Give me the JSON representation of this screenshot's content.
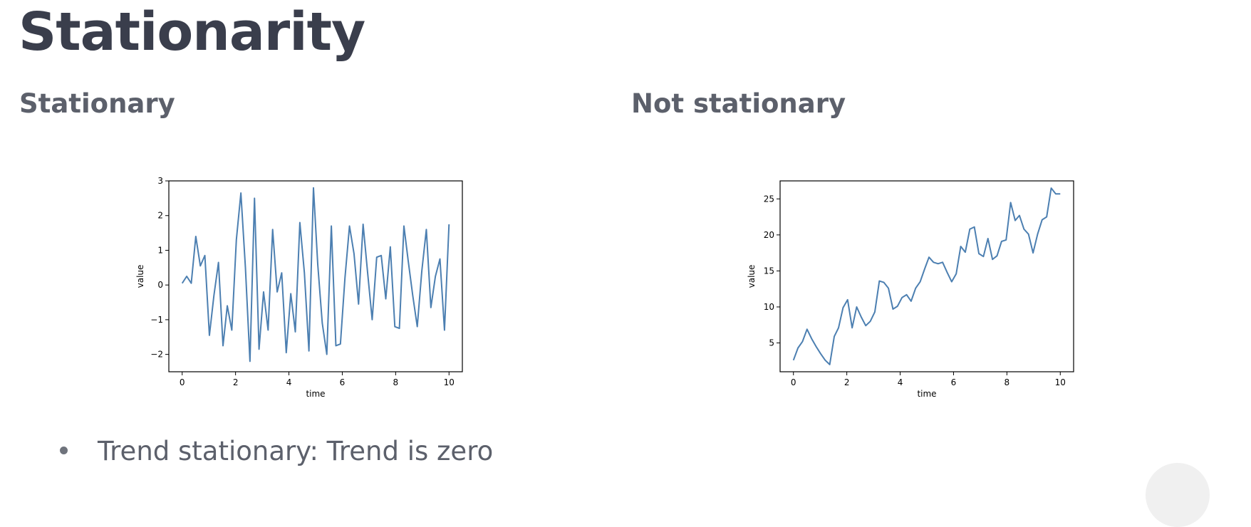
{
  "title": "Stationarity",
  "panels": [
    {
      "subtitle": "Stationary"
    },
    {
      "subtitle": "Not stationary"
    }
  ],
  "bullet": {
    "text": "Trend stationary: Trend is zero"
  },
  "colors": {
    "line": "#4c7fb1",
    "title": "#3a3e4c",
    "text": "#5c606b"
  },
  "chart_data": [
    {
      "type": "line",
      "xlabel": "time",
      "ylabel": "value",
      "xlim": [
        -0.5,
        10.5
      ],
      "ylim": [
        -2.5,
        3.0
      ],
      "xticks": [
        0,
        2,
        4,
        6,
        8,
        10
      ],
      "xtick_labels": [
        "0",
        "2",
        "4",
        "6",
        "8",
        "10"
      ],
      "yticks": [
        -2,
        -1,
        0,
        1,
        2,
        3
      ],
      "ytick_labels": [
        "−2",
        "−1",
        "0",
        "1",
        "2",
        "3"
      ],
      "grid": false,
      "series": [
        {
          "x": [
            0.0,
            0.17,
            0.34,
            0.51,
            0.68,
            0.85,
            1.02,
            1.19,
            1.36,
            1.53,
            1.69,
            1.86,
            2.03,
            2.2,
            2.37,
            2.54,
            2.71,
            2.88,
            3.05,
            3.22,
            3.39,
            3.56,
            3.73,
            3.9,
            4.07,
            4.24,
            4.41,
            4.58,
            4.75,
            4.92,
            5.08,
            5.25,
            5.42,
            5.59,
            5.76,
            5.93,
            6.1,
            6.27,
            6.44,
            6.61,
            6.78,
            6.95,
            7.12,
            7.29,
            7.46,
            7.63,
            7.8,
            7.97,
            8.14,
            8.31,
            8.47,
            8.64,
            8.81,
            8.98,
            9.15,
            9.32,
            9.49,
            9.66,
            9.83,
            10.0
          ],
          "y": [
            0.05,
            0.25,
            0.05,
            1.4,
            0.55,
            0.85,
            -1.45,
            -0.3,
            0.65,
            -1.75,
            -0.6,
            -1.3,
            1.3,
            2.65,
            0.5,
            -2.2,
            2.5,
            -1.85,
            -0.2,
            -1.3,
            1.6,
            -0.2,
            0.35,
            -1.95,
            -0.25,
            -1.35,
            1.8,
            0.35,
            -1.9,
            2.8,
            0.6,
            -1.1,
            -2.0,
            1.7,
            -1.75,
            -1.7,
            0.2,
            1.7,
            0.9,
            -0.55,
            1.75,
            0.35,
            -1.0,
            0.8,
            0.85,
            -0.4,
            1.1,
            -1.2,
            -1.25,
            1.7,
            0.7,
            -0.3,
            -1.2,
            0.4,
            1.6,
            -0.65,
            0.25,
            0.75,
            -1.3,
            1.75
          ]
        }
      ]
    },
    {
      "type": "line",
      "xlabel": "time",
      "ylabel": "value",
      "xlim": [
        -0.5,
        10.5
      ],
      "ylim": [
        1.0,
        27.5
      ],
      "xticks": [
        0,
        2,
        4,
        6,
        8,
        10
      ],
      "xtick_labels": [
        "0",
        "2",
        "4",
        "6",
        "8",
        "10"
      ],
      "yticks": [
        5,
        10,
        15,
        20,
        25
      ],
      "ytick_labels": [
        "5",
        "10",
        "15",
        "20",
        "25"
      ],
      "grid": false,
      "series": [
        {
          "x": [
            0.0,
            0.17,
            0.34,
            0.51,
            0.68,
            0.85,
            1.02,
            1.19,
            1.36,
            1.53,
            1.69,
            1.86,
            2.03,
            2.2,
            2.37,
            2.54,
            2.71,
            2.88,
            3.05,
            3.22,
            3.39,
            3.56,
            3.73,
            3.9,
            4.07,
            4.24,
            4.41,
            4.58,
            4.75,
            4.92,
            5.08,
            5.25,
            5.42,
            5.59,
            5.76,
            5.93,
            6.1,
            6.27,
            6.44,
            6.61,
            6.78,
            6.95,
            7.12,
            7.29,
            7.46,
            7.63,
            7.8,
            7.97,
            8.14,
            8.31,
            8.47,
            8.64,
            8.81,
            8.98,
            9.15,
            9.32,
            9.49,
            9.66,
            9.83,
            10.0
          ],
          "y": [
            2.6,
            4.3,
            5.2,
            6.9,
            5.6,
            4.5,
            3.5,
            2.6,
            2.0,
            5.9,
            7.1,
            9.9,
            11.0,
            7.1,
            10.0,
            8.6,
            7.4,
            8.0,
            9.3,
            13.6,
            13.4,
            12.6,
            9.7,
            10.1,
            11.3,
            11.7,
            10.8,
            12.6,
            13.5,
            15.3,
            16.9,
            16.2,
            16.0,
            16.2,
            14.8,
            13.5,
            14.6,
            18.4,
            17.6,
            20.8,
            21.1,
            17.4,
            17.0,
            19.5,
            16.6,
            17.1,
            19.1,
            19.3,
            24.5,
            22.0,
            22.7,
            20.8,
            20.1,
            17.5,
            20.1,
            22.1,
            22.5,
            26.5,
            25.7,
            25.7
          ]
        }
      ]
    }
  ]
}
